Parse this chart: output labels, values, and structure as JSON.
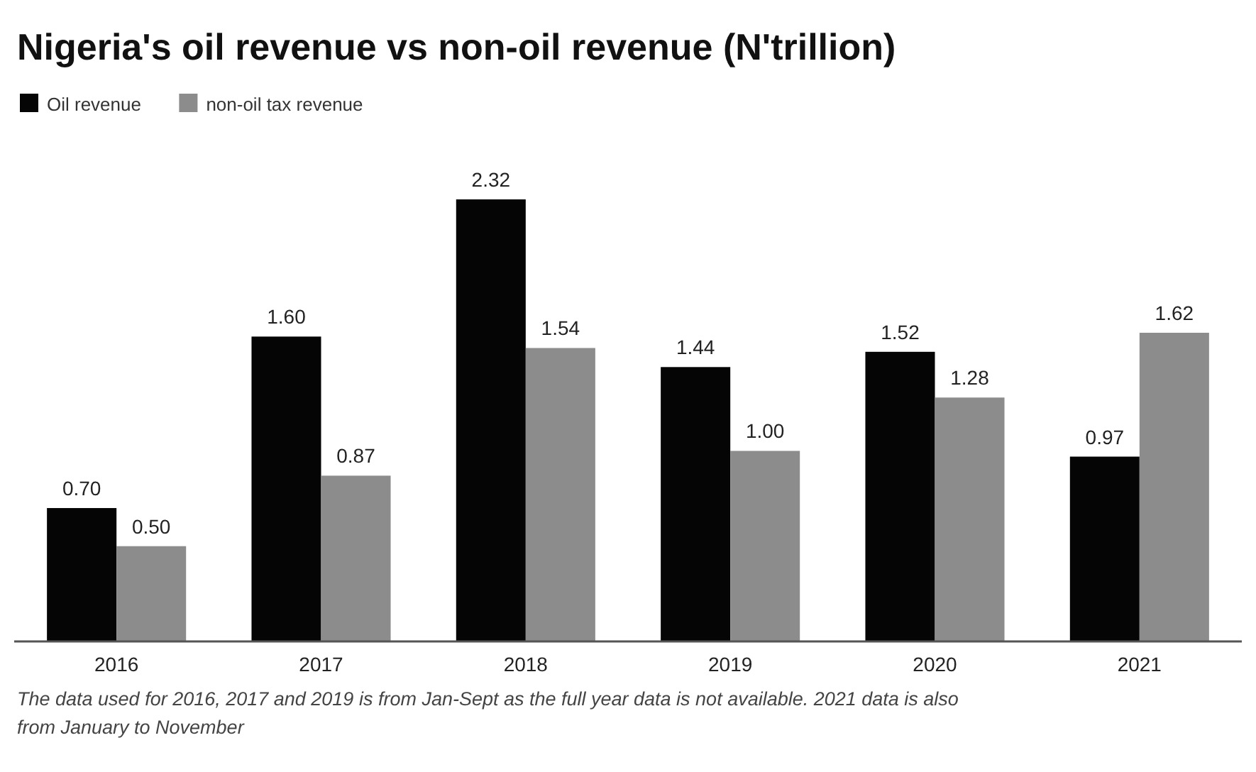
{
  "chart_data": {
    "type": "bar",
    "title": "Nigeria's oil revenue vs non-oil revenue (N'trillion)",
    "categories": [
      "2016",
      "2017",
      "2018",
      "2019",
      "2020",
      "2021"
    ],
    "series": [
      {
        "name": "Oil revenue",
        "color": "#050505",
        "values": [
          0.7,
          1.6,
          2.32,
          1.44,
          1.52,
          0.97
        ],
        "value_labels": [
          "0.70",
          "1.60",
          "2.32",
          "1.44",
          "1.52",
          "0.97"
        ]
      },
      {
        "name": "non-oil tax revenue",
        "color": "#8c8c8c",
        "values": [
          0.5,
          0.87,
          1.54,
          1.0,
          1.28,
          1.62
        ],
        "value_labels": [
          "0.50",
          "0.87",
          "1.54",
          "1.00",
          "1.28",
          "1.62"
        ]
      }
    ],
    "legend": "top left",
    "annotations": [
      "The data used for 2016, 2017 and 2019 is from Jan-Sept as the full year data is not available. 2021 data is also from January to November"
    ]
  }
}
